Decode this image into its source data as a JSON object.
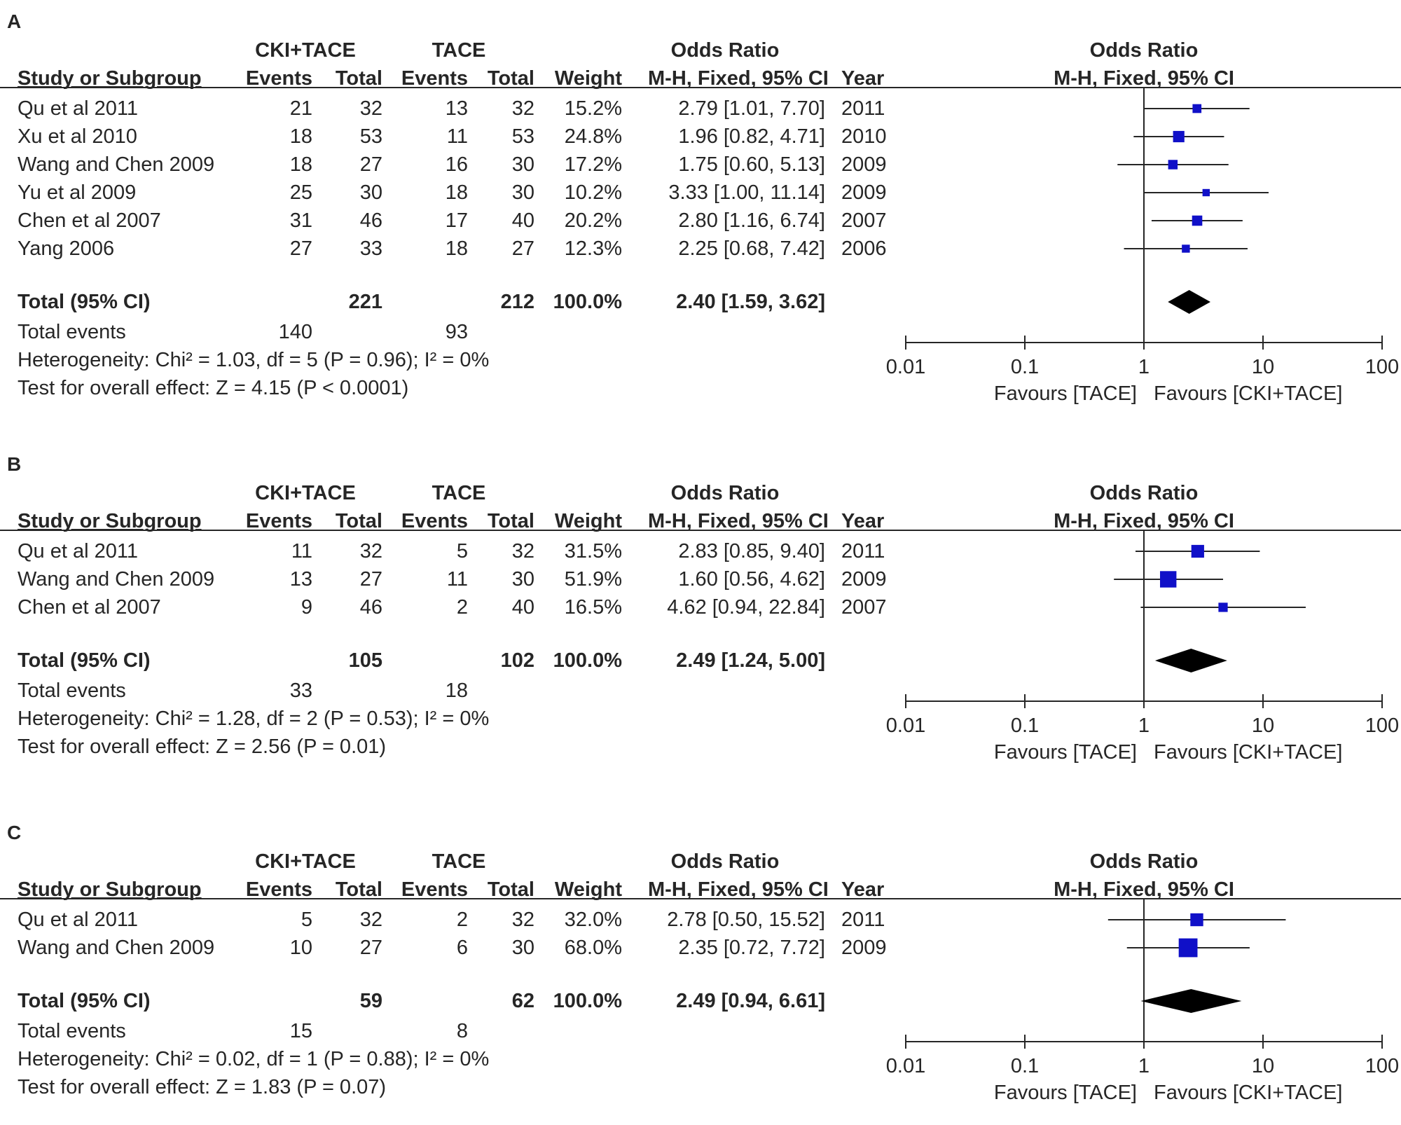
{
  "colors": {
    "study_marker": "#1010c8",
    "diamond": "#000000",
    "line": "#262626"
  },
  "chart_data": [
    {
      "type": "forest",
      "panel_label": "A",
      "group_headers": {
        "experimental": "CKI+TACE",
        "control": "TACE",
        "effect_left": "Odds Ratio",
        "effect_right": "Odds Ratio"
      },
      "column_headers": {
        "study": "Study or Subgroup",
        "exp_events": "Events",
        "exp_total": "Total",
        "ctrl_events": "Events",
        "ctrl_total": "Total",
        "weight": "Weight",
        "method": "M-H, Fixed, 95% CI",
        "year": "Year",
        "plot_method": "M-H, Fixed, 95% CI"
      },
      "studies": [
        {
          "name": "Qu et al 2011",
          "exp_events": "21",
          "exp_total": "32",
          "ctrl_events": "13",
          "ctrl_total": "32",
          "weight": "15.2%",
          "or_text": "2.79 [1.01, 7.70]",
          "year": "2011",
          "or": 2.79,
          "lo": 1.01,
          "hi": 7.7,
          "w": 15.2
        },
        {
          "name": "Xu et al 2010",
          "exp_events": "18",
          "exp_total": "53",
          "ctrl_events": "11",
          "ctrl_total": "53",
          "weight": "24.8%",
          "or_text": "1.96 [0.82, 4.71]",
          "year": "2010",
          "or": 1.96,
          "lo": 0.82,
          "hi": 4.71,
          "w": 24.8
        },
        {
          "name": "Wang and Chen 2009",
          "exp_events": "18",
          "exp_total": "27",
          "ctrl_events": "16",
          "ctrl_total": "30",
          "weight": "17.2%",
          "or_text": "1.75 [0.60, 5.13]",
          "year": "2009",
          "or": 1.75,
          "lo": 0.6,
          "hi": 5.13,
          "w": 17.2
        },
        {
          "name": "Yu et al 2009",
          "exp_events": "25",
          "exp_total": "30",
          "ctrl_events": "18",
          "ctrl_total": "30",
          "weight": "10.2%",
          "or_text": "3.33 [1.00, 11.14]",
          "year": "2009",
          "or": 3.33,
          "lo": 1.0,
          "hi": 11.14,
          "w": 10.2
        },
        {
          "name": "Chen et al 2007",
          "exp_events": "31",
          "exp_total": "46",
          "ctrl_events": "17",
          "ctrl_total": "40",
          "weight": "20.2%",
          "or_text": "2.80 [1.16, 6.74]",
          "year": "2007",
          "or": 2.8,
          "lo": 1.16,
          "hi": 6.74,
          "w": 20.2
        },
        {
          "name": "Yang 2006",
          "exp_events": "27",
          "exp_total": "33",
          "ctrl_events": "18",
          "ctrl_total": "27",
          "weight": "12.3%",
          "or_text": "2.25 [0.68, 7.42]",
          "year": "2006",
          "or": 2.25,
          "lo": 0.68,
          "hi": 7.42,
          "w": 12.3
        }
      ],
      "total": {
        "label": "Total (95% CI)",
        "exp_total": "221",
        "ctrl_total": "212",
        "weight": "100.0%",
        "or_text": "2.40 [1.59, 3.62]",
        "or": 2.4,
        "lo": 1.59,
        "hi": 3.62
      },
      "total_events": {
        "label": "Total events",
        "exp": "140",
        "ctrl": "93"
      },
      "heterogeneity": "Heterogeneity: Chi² = 1.03, df = 5 (P = 0.96); I² = 0%",
      "overall_effect": "Test for overall effect: Z = 4.15 (P < 0.0001)",
      "axis": {
        "scale": "log",
        "ticks": [
          0.01,
          0.1,
          1,
          10,
          100
        ],
        "tick_labels": [
          "0.01",
          "0.1",
          "1",
          "10",
          "100"
        ],
        "xlim": [
          0.01,
          100
        ]
      },
      "favours_left": "Favours [TACE]",
      "favours_right": "Favours [CKI+TACE]"
    },
    {
      "type": "forest",
      "panel_label": "B",
      "group_headers": {
        "experimental": "CKI+TACE",
        "control": "TACE",
        "effect_left": "Odds Ratio",
        "effect_right": "Odds Ratio"
      },
      "column_headers": {
        "study": "Study or Subgroup",
        "exp_events": "Events",
        "exp_total": "Total",
        "ctrl_events": "Events",
        "ctrl_total": "Total",
        "weight": "Weight",
        "method": "M-H, Fixed, 95% CI",
        "year": "Year",
        "plot_method": "M-H, Fixed, 95% CI"
      },
      "studies": [
        {
          "name": "Qu et al 2011",
          "exp_events": "11",
          "exp_total": "32",
          "ctrl_events": "5",
          "ctrl_total": "32",
          "weight": "31.5%",
          "or_text": "2.83 [0.85, 9.40]",
          "year": "2011",
          "or": 2.83,
          "lo": 0.85,
          "hi": 9.4,
          "w": 31.5
        },
        {
          "name": "Wang and Chen 2009",
          "exp_events": "13",
          "exp_total": "27",
          "ctrl_events": "11",
          "ctrl_total": "30",
          "weight": "51.9%",
          "or_text": "1.60 [0.56, 4.62]",
          "year": "2009",
          "or": 1.6,
          "lo": 0.56,
          "hi": 4.62,
          "w": 51.9
        },
        {
          "name": "Chen et al 2007",
          "exp_events": "9",
          "exp_total": "46",
          "ctrl_events": "2",
          "ctrl_total": "40",
          "weight": "16.5%",
          "or_text": "4.62 [0.94, 22.84]",
          "year": "2007",
          "or": 4.62,
          "lo": 0.94,
          "hi": 22.84,
          "w": 16.5
        }
      ],
      "total": {
        "label": "Total (95% CI)",
        "exp_total": "105",
        "ctrl_total": "102",
        "weight": "100.0%",
        "or_text": "2.49 [1.24, 5.00]",
        "or": 2.49,
        "lo": 1.24,
        "hi": 5.0
      },
      "total_events": {
        "label": "Total events",
        "exp": "33",
        "ctrl": "18"
      },
      "heterogeneity": "Heterogeneity: Chi² = 1.28, df = 2 (P = 0.53); I² = 0%",
      "overall_effect": "Test for overall effect: Z = 2.56 (P = 0.01)",
      "axis": {
        "scale": "log",
        "ticks": [
          0.01,
          0.1,
          1,
          10,
          100
        ],
        "tick_labels": [
          "0.01",
          "0.1",
          "1",
          "10",
          "100"
        ],
        "xlim": [
          0.01,
          100
        ]
      },
      "favours_left": "Favours [TACE]",
      "favours_right": "Favours [CKI+TACE]"
    },
    {
      "type": "forest",
      "panel_label": "C",
      "group_headers": {
        "experimental": "CKI+TACE",
        "control": "TACE",
        "effect_left": "Odds Ratio",
        "effect_right": "Odds Ratio"
      },
      "column_headers": {
        "study": "Study or Subgroup",
        "exp_events": "Events",
        "exp_total": "Total",
        "ctrl_events": "Events",
        "ctrl_total": "Total",
        "weight": "Weight",
        "method": "M-H, Fixed, 95% CI",
        "year": "Year",
        "plot_method": "M-H, Fixed, 95% CI"
      },
      "studies": [
        {
          "name": "Qu et al 2011",
          "exp_events": "5",
          "exp_total": "32",
          "ctrl_events": "2",
          "ctrl_total": "32",
          "weight": "32.0%",
          "or_text": "2.78 [0.50, 15.52]",
          "year": "2011",
          "or": 2.78,
          "lo": 0.5,
          "hi": 15.52,
          "w": 32.0
        },
        {
          "name": "Wang and Chen 2009",
          "exp_events": "10",
          "exp_total": "27",
          "ctrl_events": "6",
          "ctrl_total": "30",
          "weight": "68.0%",
          "or_text": "2.35 [0.72, 7.72]",
          "year": "2009",
          "or": 2.35,
          "lo": 0.72,
          "hi": 7.72,
          "w": 68.0
        }
      ],
      "total": {
        "label": "Total (95% CI)",
        "exp_total": "59",
        "ctrl_total": "62",
        "weight": "100.0%",
        "or_text": "2.49 [0.94, 6.61]",
        "or": 2.49,
        "lo": 0.94,
        "hi": 6.61
      },
      "total_events": {
        "label": "Total events",
        "exp": "15",
        "ctrl": "8"
      },
      "heterogeneity": "Heterogeneity: Chi² = 0.02, df = 1 (P = 0.88); I² = 0%",
      "overall_effect": "Test for overall effect: Z = 1.83 (P = 0.07)",
      "axis": {
        "scale": "log",
        "ticks": [
          0.01,
          0.1,
          1,
          10,
          100
        ],
        "tick_labels": [
          "0.01",
          "0.1",
          "1",
          "10",
          "100"
        ],
        "xlim": [
          0.01,
          100
        ]
      },
      "favours_left": "Favours [TACE]",
      "favours_right": "Favours [CKI+TACE]"
    }
  ]
}
